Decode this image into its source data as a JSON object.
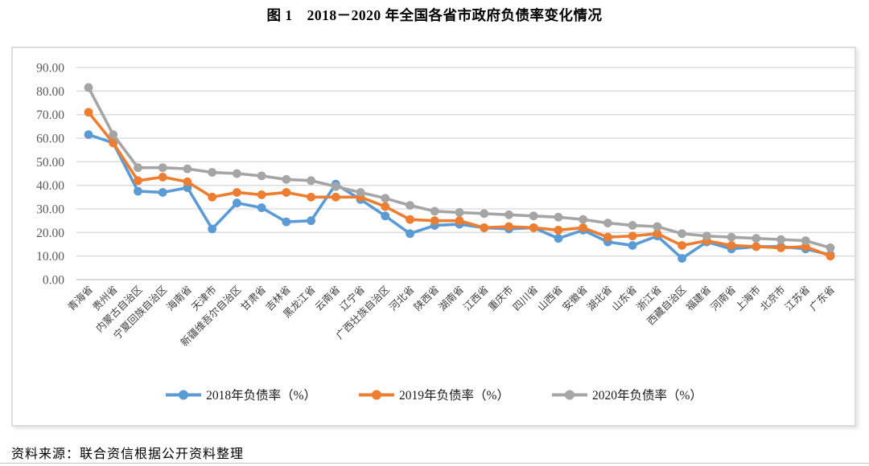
{
  "title": "图 1　2018－2020 年全国各省市政府负债率变化情况",
  "source_note": "资料来源：联合资信根据公开资料整理",
  "chart_data": {
    "type": "line",
    "title": "图 1　2018－2020 年全国各省市政府负债率变化情况",
    "categories": [
      "青海省",
      "贵州省",
      "内蒙古自治区",
      "宁夏回族自治区",
      "海南省",
      "天津市",
      "新疆维吾尔自治区",
      "甘肃省",
      "吉林省",
      "黑龙江省",
      "云南省",
      "辽宁省",
      "广西壮族自治区",
      "河北省",
      "陕西省",
      "湖南省",
      "江西省",
      "重庆市",
      "四川省",
      "山西省",
      "安徽省",
      "湖北省",
      "山东省",
      "浙江省",
      "西藏自治区",
      "福建省",
      "河南省",
      "上海市",
      "北京市",
      "江苏省",
      "广东省"
    ],
    "series": [
      {
        "name": "2018年负债率（%）",
        "color": "#5B9BD5",
        "values": [
          61.5,
          58,
          37.5,
          37,
          39,
          21.5,
          32.5,
          30.5,
          24.5,
          25,
          40.5,
          34,
          27,
          19.5,
          23,
          23.5,
          22,
          21.5,
          22,
          17.5,
          21,
          16,
          14.5,
          18.5,
          9,
          16,
          13,
          14,
          14,
          13,
          10.5
        ]
      },
      {
        "name": "2019年负债率（%）",
        "color": "#ED7D31",
        "values": [
          71,
          58,
          42,
          43.5,
          41.5,
          35,
          37,
          36,
          37,
          35,
          35,
          35,
          31,
          25.5,
          25,
          25,
          22,
          22.5,
          22,
          21,
          22,
          18,
          18.5,
          19.5,
          14.5,
          16.5,
          14.5,
          14,
          13.5,
          14,
          10
        ]
      },
      {
        "name": "2020年负债率（%）",
        "color": "#A5A5A5",
        "values": [
          81.5,
          61.5,
          47.5,
          47.5,
          47,
          45.5,
          45,
          44,
          42.5,
          42,
          39.5,
          37,
          34.5,
          31.5,
          29,
          28.5,
          28,
          27.5,
          27,
          26.5,
          25.5,
          24,
          23,
          22.5,
          19.5,
          18.5,
          18,
          17.5,
          17,
          16.5,
          13.5
        ]
      }
    ],
    "xlabel": "",
    "ylabel": "",
    "ylim": [
      0,
      90
    ],
    "y_tick_step": 10,
    "y_tick_labels": [
      "0.00",
      "10.00",
      "20.00",
      "30.00",
      "40.00",
      "50.00",
      "60.00",
      "70.00",
      "80.00",
      "90.00"
    ],
    "grid": true,
    "legend_position": "bottom",
    "gridline_color": "#d9d9d9",
    "axis_line_color": "#bfbfbf",
    "tick_label_color": "#404040"
  }
}
